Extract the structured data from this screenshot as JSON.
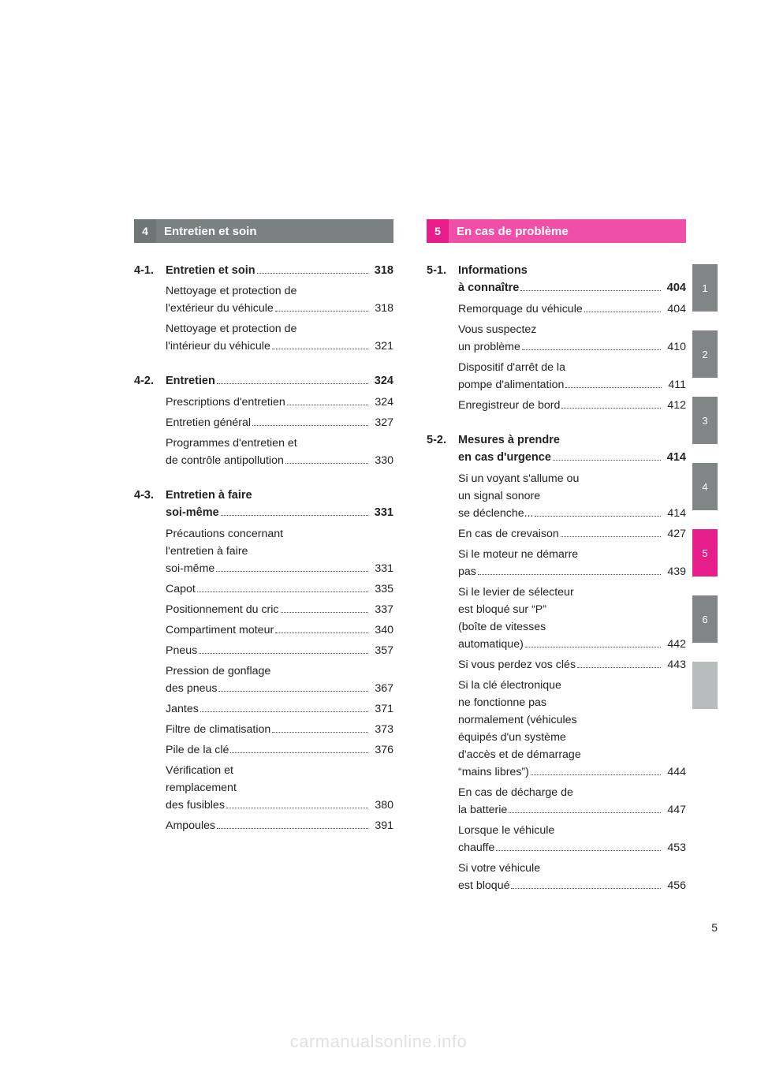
{
  "left_section": {
    "header_num_bg": "#6f7475",
    "header_title_bg": "#7b8081",
    "number": "4",
    "title": "Entretien et soin",
    "groups": [
      {
        "idx": "4-1.",
        "title": "Entretien et soin",
        "page": "318",
        "items": [
          {
            "label": "Nettoyage et protection de\n  l'extérieur du véhicule",
            "page": "318"
          },
          {
            "label": "Nettoyage et protection de\n  l'intérieur du véhicule",
            "page": "321"
          }
        ]
      },
      {
        "idx": "4-2.",
        "title": "Entretien",
        "page": "324",
        "items": [
          {
            "label": "Prescriptions d'entretien",
            "page": "324"
          },
          {
            "label": "Entretien général",
            "page": "327"
          },
          {
            "label": "Programmes d'entretien et\n  de contrôle antipollution",
            "page": "330"
          }
        ]
      },
      {
        "idx": "4-3.",
        "title": "Entretien à faire\nsoi-même",
        "page": "331",
        "items": [
          {
            "label": "Précautions concernant\n  l'entretien à faire\n  soi-même",
            "page": "331"
          },
          {
            "label": "Capot",
            "page": "335"
          },
          {
            "label": "Positionnement du cric",
            "page": "337"
          },
          {
            "label": "Compartiment moteur",
            "page": "340"
          },
          {
            "label": "Pneus",
            "page": "357"
          },
          {
            "label": "Pression de gonflage\n  des pneus",
            "page": "367"
          },
          {
            "label": "Jantes",
            "page": "371"
          },
          {
            "label": "Filtre de climatisation",
            "page": "373"
          },
          {
            "label": "Pile de la clé",
            "page": "376"
          },
          {
            "label": "Vérification et\n  remplacement\n  des fusibles",
            "page": "380"
          },
          {
            "label": "Ampoules",
            "page": "391"
          }
        ]
      }
    ]
  },
  "right_section": {
    "header_num_bg": "#e61e8c",
    "header_title_bg": "#ef4fa6",
    "number": "5",
    "title": "En cas de problème",
    "groups": [
      {
        "idx": "5-1.",
        "title": "Informations\nà connaître",
        "page": "404",
        "items": [
          {
            "label": "Remorquage du véhicule",
            "page": "404"
          },
          {
            "label": "Vous suspectez\n  un problème",
            "page": "410"
          },
          {
            "label": "Dispositif d'arrêt de la\n  pompe d'alimentation",
            "page": "411"
          },
          {
            "label": "Enregistreur de bord",
            "page": "412"
          }
        ]
      },
      {
        "idx": "5-2.",
        "title": "Mesures à prendre\nen cas d'urgence",
        "page": "414",
        "items": [
          {
            "label": "Si un voyant s'allume ou\n  un signal sonore\n  se déclenche...",
            "page": "414"
          },
          {
            "label": "En cas de crevaison",
            "page": "427"
          },
          {
            "label": "Si le moteur ne démarre\n  pas",
            "page": "439"
          },
          {
            "label": "Si le levier de sélecteur\n  est bloqué sur “P”\n  (boîte de vitesses\n  automatique)",
            "page": "442"
          },
          {
            "label": "Si vous perdez vos clés",
            "page": "443"
          },
          {
            "label": "Si la clé électronique\n  ne fonctionne pas\n  normalement (véhicules\n  équipés d'un système\n  d'accès et de démarrage\n  “mains libres”)",
            "page": "444"
          },
          {
            "label": "En cas de décharge de\n  la batterie",
            "page": "447"
          },
          {
            "label": "Lorsque le véhicule\n  chauffe",
            "page": "453"
          },
          {
            "label": "Si votre véhicule\n  est bloqué",
            "page": "456"
          }
        ]
      }
    ]
  },
  "tabs": [
    {
      "label": "1",
      "bg": "#808586",
      "text_class": "light"
    },
    {
      "label": "2",
      "bg": "#808586",
      "text_class": "light"
    },
    {
      "label": "3",
      "bg": "#808586",
      "text_class": "light"
    },
    {
      "label": "4",
      "bg": "#808586",
      "text_class": "light"
    },
    {
      "label": "5",
      "bg": "#e61e8c",
      "text_class": "light"
    },
    {
      "label": "6",
      "bg": "#808586",
      "text_class": "light"
    },
    {
      "label": "",
      "bg": "#b9bcbd",
      "text_class": "dim"
    }
  ],
  "page_number": "5",
  "watermark": "carmanualsonline.info"
}
